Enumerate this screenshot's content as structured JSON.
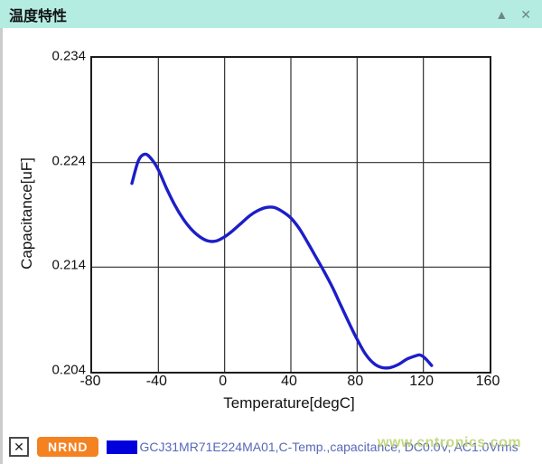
{
  "window": {
    "title": "温度特性",
    "collapse_icon": "▲",
    "close_icon": "✕"
  },
  "chart_data": {
    "type": "line",
    "title": "",
    "xlabel": "Temperature[degC]",
    "ylabel": "Capacitance[uF]",
    "xlim": [
      -80,
      160
    ],
    "ylim": [
      0.204,
      0.234
    ],
    "x_ticks": [
      -80,
      -40,
      0,
      40,
      80,
      120,
      160
    ],
    "y_ticks": [
      0.234,
      0.224,
      0.214,
      0.204
    ],
    "grid": true,
    "legend_position": "bottom",
    "series": [
      {
        "name": "GCJ31MR71E224MA01,C-Temp.,capacitance, DC0.0V, AC1.0Vrms",
        "color": "#1c1ec8",
        "points": [
          [
            -56,
            0.222
          ],
          [
            -52,
            0.2242
          ],
          [
            -48,
            0.2248
          ],
          [
            -44,
            0.2243
          ],
          [
            -40,
            0.2233
          ],
          [
            -35,
            0.2215
          ],
          [
            -30,
            0.2199
          ],
          [
            -25,
            0.2186
          ],
          [
            -20,
            0.2176
          ],
          [
            -15,
            0.2169
          ],
          [
            -10,
            0.2165
          ],
          [
            -5,
            0.2165
          ],
          [
            0,
            0.2169
          ],
          [
            5,
            0.2175
          ],
          [
            10,
            0.2182
          ],
          [
            15,
            0.2189
          ],
          [
            20,
            0.2194
          ],
          [
            25,
            0.2197
          ],
          [
            30,
            0.2197
          ],
          [
            35,
            0.2193
          ],
          [
            40,
            0.2187
          ],
          [
            45,
            0.2177
          ],
          [
            50,
            0.2164
          ],
          [
            55,
            0.215
          ],
          [
            60,
            0.2136
          ],
          [
            65,
            0.2121
          ],
          [
            70,
            0.2104
          ],
          [
            75,
            0.2087
          ],
          [
            80,
            0.2071
          ],
          [
            85,
            0.2057
          ],
          [
            90,
            0.2048
          ],
          [
            95,
            0.2044
          ],
          [
            100,
            0.2044
          ],
          [
            105,
            0.2047
          ],
          [
            110,
            0.2052
          ],
          [
            115,
            0.2055
          ],
          [
            118,
            0.2056
          ],
          [
            121,
            0.2053
          ],
          [
            125,
            0.2046
          ]
        ]
      }
    ]
  },
  "legend": {
    "checkbox_glyph": "✕",
    "badge": "NRND",
    "badge_color": "#f58220",
    "swatch_color": "#0000dd",
    "label": "GCJ31MR71E224MA01,C-Temp.,capacitance, DC0.0V, AC1.0Vrms"
  },
  "watermark": "www.cntronics.com",
  "colors": {
    "header_bg": "#b4ece2",
    "grid_line": "#2e2e2e",
    "axis_border": "#1c1c1c"
  }
}
